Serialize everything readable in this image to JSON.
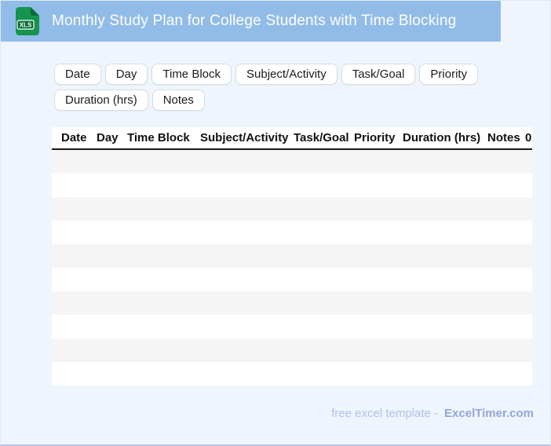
{
  "header": {
    "title": "Monthly Study Plan for College Students with Time Blocking",
    "icon_label": "XLS"
  },
  "chips": [
    "Date",
    "Day",
    "Time Block",
    "Subject/Activity",
    "Task/Goal",
    "Priority",
    "Duration (hrs)",
    "Notes"
  ],
  "table": {
    "columns": [
      "Date",
      "Day",
      "Time Block",
      "Subject/Activity",
      "Task/Goal",
      "Priority",
      "Duration (hrs)",
      "Notes",
      "0"
    ],
    "row_count": 10
  },
  "footer": {
    "text": "free excel template -",
    "brand": "ExcelTimer.com"
  },
  "colors": {
    "header_bg": "#91bce8",
    "page_bg": "#eff5fd",
    "icon_green": "#16944e",
    "icon_green_dark": "#0a6b37",
    "stripe": "#f5f5f6",
    "header_rule": "#191919",
    "footer_text": "#b1bfe9",
    "footer_brand": "#93a5d8",
    "bottom_edge": "#b7c5ea"
  }
}
